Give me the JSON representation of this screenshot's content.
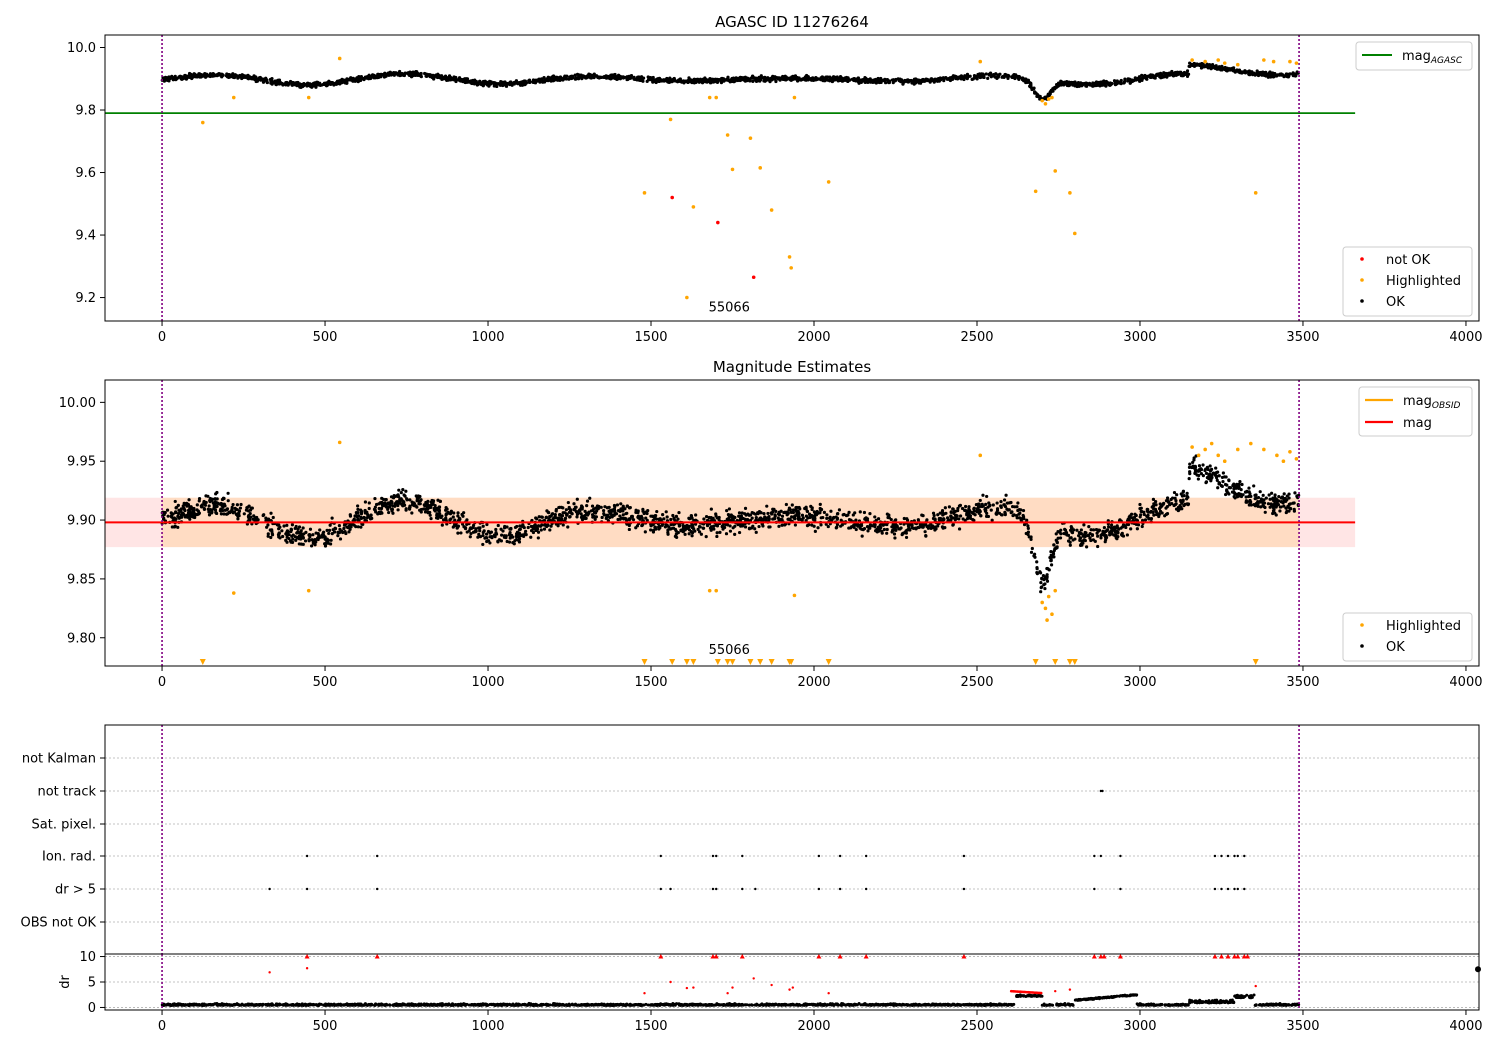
{
  "chart_data": [
    {
      "type": "scatter",
      "title": "AGASC ID 11276264",
      "xlim": [
        -175,
        4040
      ],
      "ylim": [
        9.125,
        10.04
      ],
      "xticks": [
        0,
        500,
        1000,
        1500,
        2000,
        2500,
        3000,
        3500,
        4000
      ],
      "yticks": [
        9.2,
        9.4,
        9.6,
        9.8,
        10.0
      ],
      "ytick_labels": [
        "9.2",
        "9.4",
        "9.6",
        "9.8",
        "10.0"
      ],
      "vlines": [
        0,
        3488
      ],
      "annotation": {
        "text": "55066",
        "x": 1740,
        "y": 9.155
      },
      "mag_agasc": {
        "value": 9.79,
        "x": [
          -175,
          3660
        ],
        "color": "#008000"
      },
      "band_legend_label": "mag",
      "band_legend_sub": "AGASC",
      "ok_band": {
        "center": 9.898,
        "amp": 0.018,
        "noise": 0.012,
        "n": 2500
      },
      "series": [
        {
          "name": "not OK",
          "color": "#ff0000",
          "points": [
            [
              1565,
              9.52
            ],
            [
              1705,
              9.44
            ],
            [
              1815,
              9.265
            ]
          ]
        },
        {
          "name": "Highlighted",
          "color": "#ffa500",
          "points": [
            [
              125,
              9.76
            ],
            [
              220,
              9.84
            ],
            [
              450,
              9.84
            ],
            [
              545,
              9.965
            ],
            [
              1480,
              9.535
            ],
            [
              1560,
              9.77
            ],
            [
              1610,
              9.2
            ],
            [
              1630,
              9.49
            ],
            [
              1680,
              9.84
            ],
            [
              1700,
              9.84
            ],
            [
              1735,
              9.72
            ],
            [
              1750,
              9.61
            ],
            [
              1805,
              9.71
            ],
            [
              1835,
              9.615
            ],
            [
              1870,
              9.48
            ],
            [
              1925,
              9.33
            ],
            [
              1930,
              9.295
            ],
            [
              1940,
              9.84
            ],
            [
              2045,
              9.57
            ],
            [
              2510,
              9.955
            ],
            [
              2680,
              9.54
            ],
            [
              2700,
              9.83
            ],
            [
              2710,
              9.82
            ],
            [
              2720,
              9.835
            ],
            [
              2730,
              9.84
            ],
            [
              2740,
              9.605
            ],
            [
              2785,
              9.535
            ],
            [
              2800,
              9.405
            ],
            [
              3160,
              9.96
            ],
            [
              3200,
              9.955
            ],
            [
              3240,
              9.96
            ],
            [
              3260,
              9.95
            ],
            [
              3300,
              9.945
            ],
            [
              3355,
              9.535
            ],
            [
              3380,
              9.96
            ],
            [
              3410,
              9.955
            ],
            [
              3460,
              9.955
            ],
            [
              3480,
              9.95
            ]
          ]
        },
        {
          "name": "OK",
          "color": "#000000",
          "points": []
        }
      ]
    },
    {
      "type": "scatter",
      "title": "Magnitude Estimates",
      "xlim": [
        -175,
        4040
      ],
      "ylim": [
        9.776,
        10.019
      ],
      "xticks": [
        0,
        500,
        1000,
        1500,
        2000,
        2500,
        3000,
        3500,
        4000
      ],
      "yticks": [
        9.8,
        9.85,
        9.9,
        9.95,
        10.0
      ],
      "ytick_labels": [
        "9.80",
        "9.85",
        "9.90",
        "9.95",
        "10.00"
      ],
      "vlines": [
        0,
        3488
      ],
      "annotation": {
        "text": "55066",
        "x": 1740,
        "y": 9.786
      },
      "mag_line": {
        "value": 9.898,
        "band": [
          9.877,
          9.919
        ],
        "x": [
          -175,
          3660
        ],
        "color": "#ff0000"
      },
      "legend_lines": [
        {
          "name": "mag",
          "sub": "OBSID",
          "color": "#ffa500"
        },
        {
          "name": "mag",
          "sub": "",
          "color": "#ff0000"
        }
      ],
      "ok_band": {
        "center": 9.9,
        "amp": 0.016,
        "noise": 0.014,
        "n": 2500
      },
      "below_range_markers": [
        125,
        1480,
        1565,
        1610,
        1630,
        1705,
        1735,
        1750,
        1805,
        1835,
        1870,
        1925,
        1930,
        2045,
        2680,
        2740,
        2785,
        2800,
        3355
      ],
      "series": [
        {
          "name": "Highlighted",
          "color": "#ffa500",
          "points": [
            [
              220,
              9.838
            ],
            [
              450,
              9.84
            ],
            [
              545,
              9.966
            ],
            [
              1680,
              9.84
            ],
            [
              1700,
              9.84
            ],
            [
              1940,
              9.836
            ],
            [
              2510,
              9.955
            ],
            [
              2700,
              9.83
            ],
            [
              2710,
              9.825
            ],
            [
              2715,
              9.815
            ],
            [
              2720,
              9.835
            ],
            [
              2730,
              9.82
            ],
            [
              2740,
              9.84
            ],
            [
              3160,
              9.962
            ],
            [
              3180,
              9.955
            ],
            [
              3200,
              9.96
            ],
            [
              3220,
              9.965
            ],
            [
              3240,
              9.955
            ],
            [
              3260,
              9.95
            ],
            [
              3300,
              9.96
            ],
            [
              3340,
              9.965
            ],
            [
              3380,
              9.96
            ],
            [
              3420,
              9.955
            ],
            [
              3440,
              9.95
            ],
            [
              3460,
              9.958
            ],
            [
              3480,
              9.952
            ]
          ]
        },
        {
          "name": "OK",
          "color": "#000000",
          "points": []
        }
      ]
    },
    {
      "type": "scatter",
      "title": "",
      "xlim": [
        -175,
        4040
      ],
      "categories": [
        "OBS not OK",
        "dr > 5",
        "Ion. rad.",
        "Sat. pixel.",
        "not track",
        "not Kalman"
      ],
      "vlines": [
        0,
        3488
      ],
      "flags": {
        "not track": [
          2880,
          2885
        ],
        "Ion. rad.": [
          445,
          660,
          1530,
          1690,
          1700,
          1780,
          2015,
          2080,
          2160,
          2460,
          2860,
          2880,
          2940,
          3230,
          3250,
          3270,
          3290,
          3300,
          3320
        ],
        "dr > 5": [
          330,
          445,
          660,
          1530,
          1560,
          1690,
          1700,
          1780,
          1820,
          2015,
          2080,
          2160,
          2460,
          2860,
          2940,
          3230,
          3250,
          3270,
          3290,
          3300,
          3320
        ]
      }
    },
    {
      "type": "scatter",
      "title": "",
      "ylabel": "dr",
      "xlim": [
        -175,
        4040
      ],
      "ylim": [
        -0.5,
        10.5
      ],
      "xticks": [
        0,
        500,
        1000,
        1500,
        2000,
        2500,
        3000,
        3500,
        4000
      ],
      "yticks": [
        0,
        5,
        10
      ],
      "ytick_labels": [
        "0",
        "5",
        "10"
      ],
      "vlines": [
        0,
        3488
      ],
      "clipped": [
        445,
        660,
        1530,
        1690,
        1700,
        1780,
        2015,
        2080,
        2160,
        2460,
        2860,
        2880,
        2890,
        2940,
        3230,
        3250,
        3270,
        3290,
        3300,
        3320,
        3330
      ],
      "red_points": [
        [
          330,
          6.9
        ],
        [
          445,
          7.7
        ],
        [
          1480,
          2.8
        ],
        [
          1560,
          5.0
        ],
        [
          1610,
          3.8
        ],
        [
          1630,
          3.9
        ],
        [
          1735,
          2.8
        ],
        [
          1750,
          3.9
        ],
        [
          1815,
          5.7
        ],
        [
          1870,
          4.4
        ],
        [
          1925,
          3.5
        ],
        [
          1935,
          3.9
        ],
        [
          2045,
          2.8
        ],
        [
          2740,
          3.2
        ],
        [
          2785,
          3.5
        ],
        [
          3355,
          4.2
        ]
      ],
      "red_curve": {
        "x": [
          2605,
          2700
        ],
        "y": 3.2
      },
      "edge_point": [
        4040,
        7.5
      ]
    }
  ]
}
